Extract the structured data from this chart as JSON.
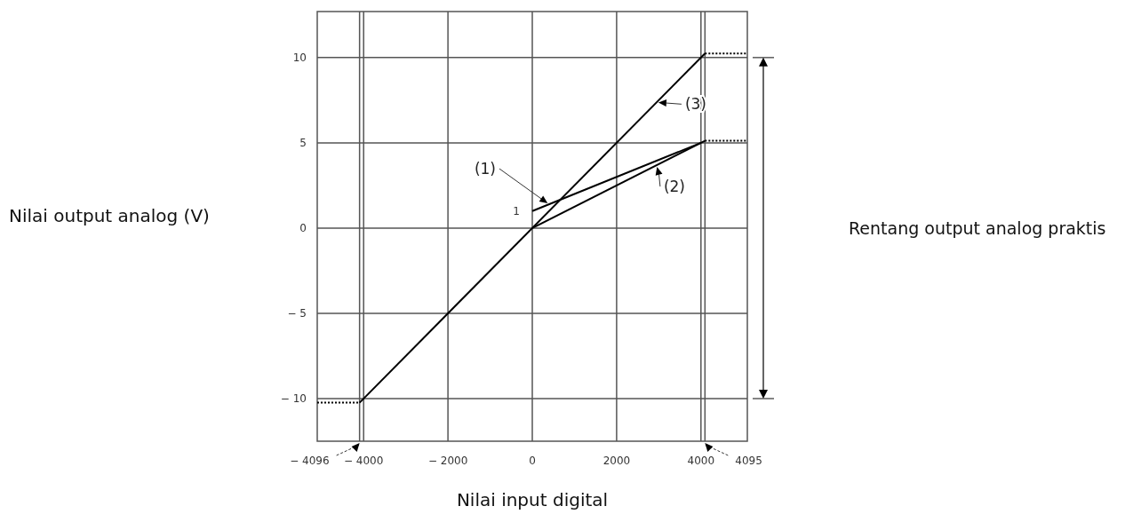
{
  "chart_data": {
    "type": "line",
    "xlabel": "Nilai input digital",
    "ylabel": "Nilai output analog (V)",
    "xlim": [
      -5100,
      5100
    ],
    "ylim": [
      -12.5,
      12.7
    ],
    "xticks": [
      {
        "value": -4000,
        "label": "− 4000"
      },
      {
        "value": -2000,
        "label": "− 2000"
      },
      0,
      2000,
      4000
    ],
    "yticks": [
      {
        "value": -10,
        "label": "− 10"
      },
      {
        "value": -5,
        "label": "− 5"
      },
      0,
      5,
      10
    ],
    "grid": true,
    "series": [
      {
        "name": "(1)",
        "color": "#000000",
        "x": [
          0,
          4000
        ],
        "values": [
          1,
          5
        ],
        "line_style": "solid"
      },
      {
        "name": "(2)",
        "color": "#000000",
        "x": [
          0,
          4095
        ],
        "values": [
          0,
          5.12
        ],
        "line_style": "solid"
      },
      {
        "name": "(3)",
        "color": "#000000",
        "x": [
          -4096,
          4095
        ],
        "values": [
          -10.24,
          10.24
        ],
        "line_style": "solid"
      },
      {
        "color": "#000000",
        "x": [
          4095,
          5100
        ],
        "values": [
          5.12,
          5.12
        ],
        "line_style": "dotted"
      },
      {
        "color": "#000000",
        "x": [
          4095,
          5100
        ],
        "values": [
          10.24,
          10.24
        ],
        "line_style": "dotted"
      },
      {
        "color": "#000000",
        "x": [
          -5100,
          -4096
        ],
        "values": [
          -10.24,
          -10.24
        ],
        "line_style": "dotted"
      }
    ],
    "ref_lines": [
      {
        "axis": "x",
        "value": -4096,
        "label": "− 4096"
      },
      {
        "axis": "x",
        "value": 4095,
        "label": "4095"
      }
    ],
    "annotations": [
      {
        "text": "1",
        "x": 0,
        "y": 1
      },
      "Rentang output analog praktis"
    ]
  }
}
